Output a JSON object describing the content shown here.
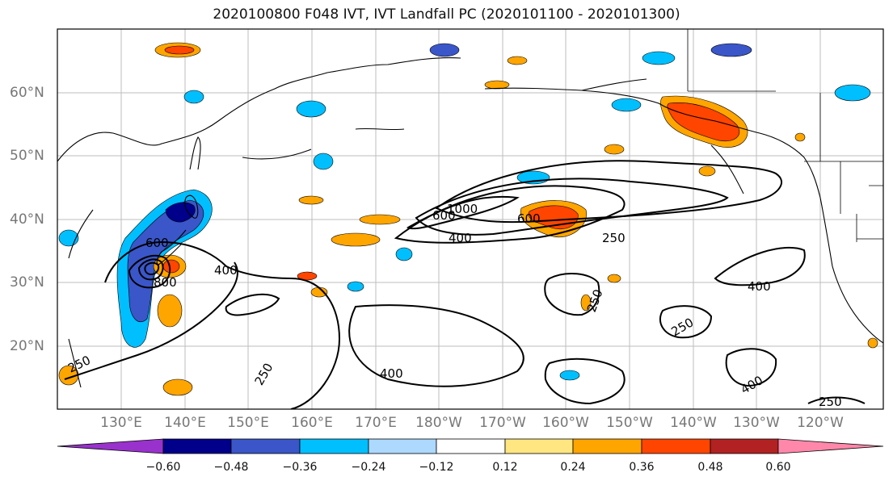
{
  "title": "2020100800 F048 IVT, IVT Landfall PC (2020101100 - 2020101300)",
  "latitude_labels": [
    "20°N",
    "30°N",
    "40°N",
    "50°N",
    "60°N"
  ],
  "longitude_labels": [
    "130°E",
    "140°E",
    "150°E",
    "160°E",
    "170°E",
    "180°W",
    "170°W",
    "160°W",
    "150°W",
    "140°W",
    "130°W",
    "120°W"
  ],
  "colorbar": {
    "tick_labels": [
      "−0.60",
      "−0.48",
      "−0.36",
      "−0.24",
      "−0.12",
      "0.12",
      "0.24",
      "0.36",
      "0.48",
      "0.60"
    ],
    "colors": [
      "#9932CC",
      "#00008B",
      "#3A56C8",
      "#00BFFF",
      "#ADD8FF",
      "#FFFFFF",
      "#FFE680",
      "#FFA500",
      "#FF4500",
      "#B22222",
      "#FF88AA"
    ]
  },
  "contour_labels": [
    "600",
    "1000",
    "400",
    "250",
    "600",
    "400",
    "250",
    "400",
    "600",
    "800",
    "400",
    "250",
    "400",
    "250",
    "250",
    "250",
    "250",
    "250"
  ]
}
